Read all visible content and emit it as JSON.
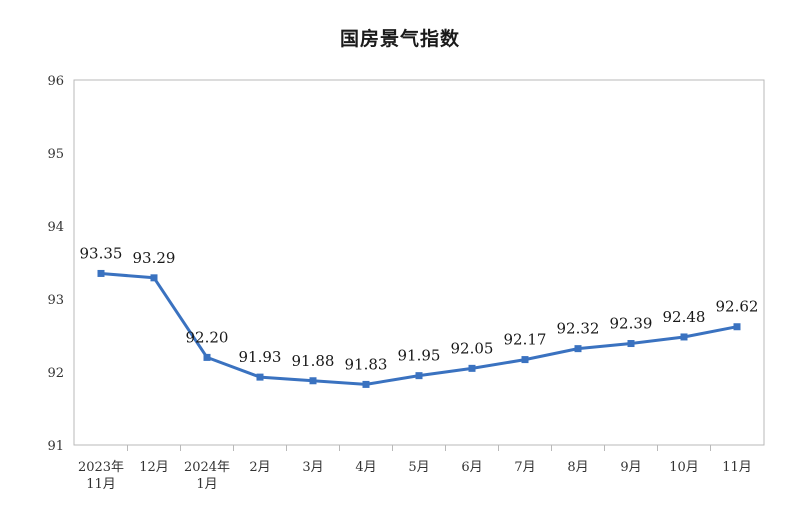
{
  "chart_data": {
    "type": "line",
    "title": "国房景气指数",
    "xlabel": "",
    "ylabel": "",
    "categories": [
      [
        "2023年",
        "11月"
      ],
      [
        "12月"
      ],
      [
        "2024年",
        "1月"
      ],
      [
        "2月"
      ],
      [
        "3月"
      ],
      [
        "4月"
      ],
      [
        "5月"
      ],
      [
        "6月"
      ],
      [
        "7月"
      ],
      [
        "8月"
      ],
      [
        "9月"
      ],
      [
        "10月"
      ],
      [
        "11月"
      ]
    ],
    "series": [
      {
        "values": [
          93.35,
          93.29,
          92.2,
          91.93,
          91.88,
          91.83,
          91.95,
          92.05,
          92.17,
          92.32,
          92.39,
          92.48,
          92.62
        ],
        "labels": [
          "93.35",
          "93.29",
          "92.20",
          "91.93",
          "91.88",
          "91.83",
          "91.95",
          "92.05",
          "92.17",
          "92.32",
          "92.39",
          "92.48",
          "92.62"
        ],
        "color": "#3a72c0"
      }
    ],
    "ylim": [
      91,
      96
    ],
    "yticks": [
      "91",
      "92",
      "93",
      "94",
      "95",
      "96"
    ],
    "grid": false,
    "legend": "none"
  }
}
